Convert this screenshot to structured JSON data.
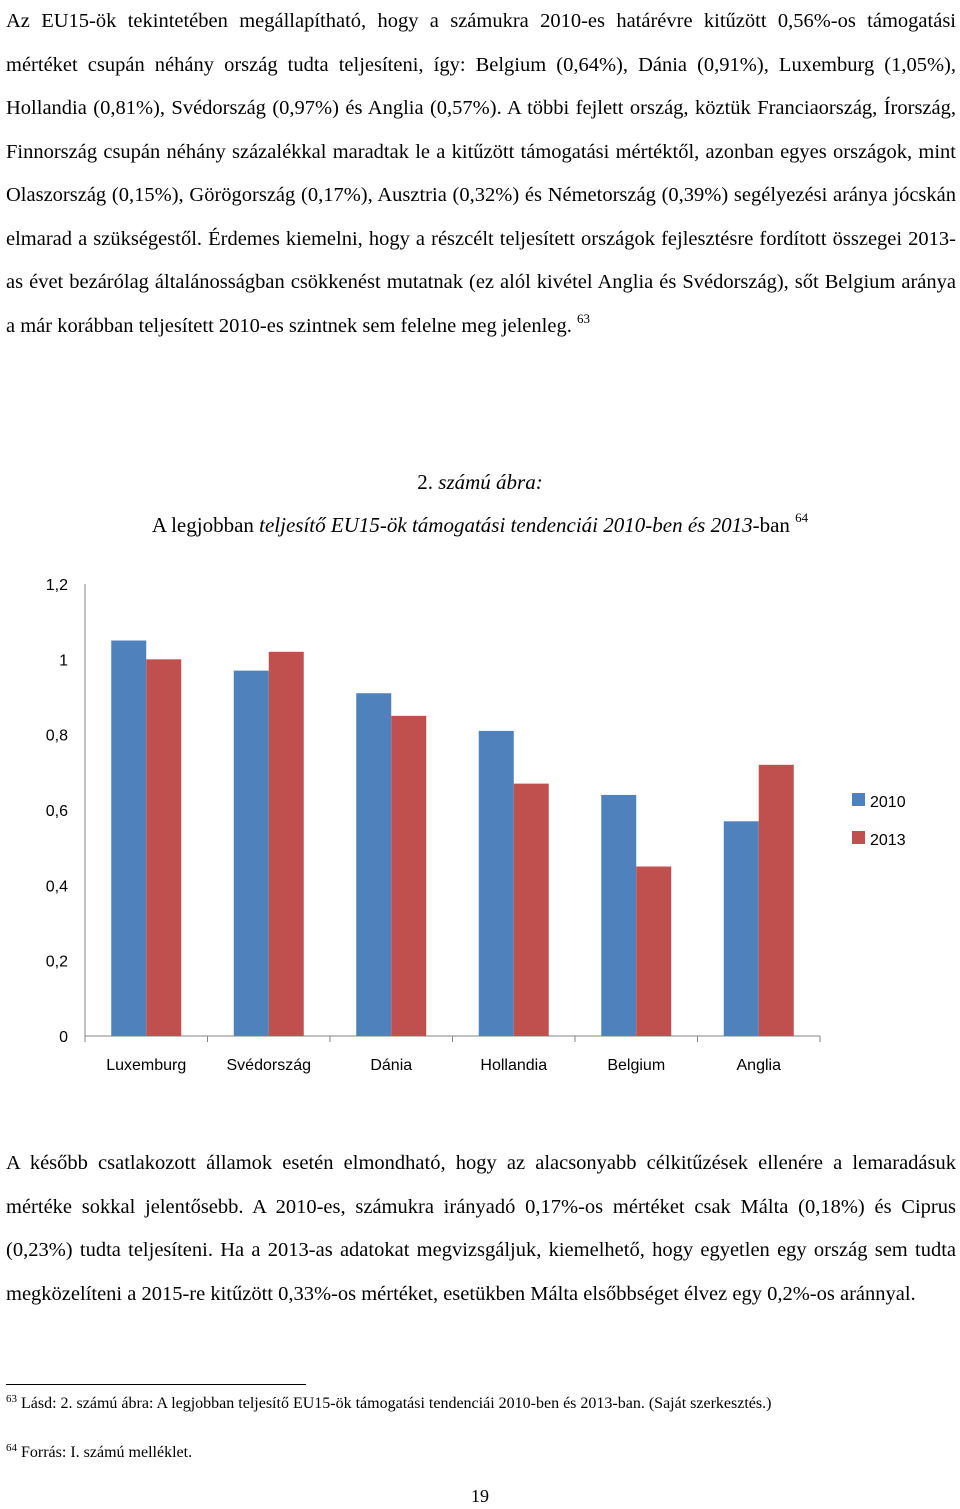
{
  "paragraph1": {
    "text": "Az EU15-ök tekintetében megállapítható, hogy a számukra 2010-es határévre kitűzött 0,56%-os támogatási mértéket csupán néhány ország tudta teljesíteni, így: Belgium (0,64%), Dánia (0,91%), Luxemburg (1,05%), Hollandia (0,81%), Svédország (0,97%) és Anglia (0,57%). A többi fejlett ország, köztük Franciaország, Írország, Finnország csupán néhány százalékkal maradtak le a kitűzött támogatási mértéktől, azonban egyes országok, mint Olaszország (0,15%), Görögország (0,17%), Ausztria (0,32%) és Németország (0,39%) segélyezési aránya jócskán elmarad a szükségestől. Érdemes kiemelni, hogy a részcélt teljesített országok fejlesztésre fordított összegei 2013-as évet bezárólag általánosságban csökkenést mutatnak (ez alól kivétel Anglia és Svédország), sőt Belgium aránya a már korábban teljesített 2010-es szintnek sem felelne meg jelenleg.",
    "footnote_ref": "63"
  },
  "figure": {
    "number": "2.",
    "number_label": "számú ábra:",
    "title_plain_1": "A legjobban ",
    "title_italic": "teljesítő EU15-ök támogatási tendenciái 2010-ben és 2013",
    "title_plain_2": "-ban",
    "footnote_ref": "64"
  },
  "chart_data": {
    "type": "bar",
    "categories": [
      "Luxemburg",
      "Svédország",
      "Dánia",
      "Hollandia",
      "Belgium",
      "Anglia"
    ],
    "series": [
      {
        "name": "2010",
        "values": [
          1.05,
          0.97,
          0.91,
          0.81,
          0.64,
          0.57
        ],
        "color": "#4f81bd"
      },
      {
        "name": "2013",
        "values": [
          1.0,
          1.02,
          0.85,
          0.67,
          0.45,
          0.72
        ],
        "color": "#c0504d"
      }
    ],
    "ylim": [
      0,
      1.2
    ],
    "yticks": [
      "0",
      "0,2",
      "0,4",
      "0,6",
      "0,8",
      "1",
      "1,2"
    ],
    "legend_position": "right",
    "grid": false
  },
  "paragraph2": {
    "text": "A később csatlakozott államok esetén elmondható, hogy az alacsonyabb célkitűzések ellenére a lemaradásuk mértéke sokkal jelentősebb. A 2010-es, számukra irányadó 0,17%-os mértéket csak Málta (0,18%) és Ciprus (0,23%) tudta teljesíteni. Ha a 2013-as adatokat megvizsgáljuk, kiemelhető, hogy egyetlen egy ország sem tudta megközelíteni a 2015-re kitűzött 0,33%-os mértéket, esetükben Málta elsőbbséget élvez egy 0,2%-os aránnyal."
  },
  "footnotes": [
    {
      "number": "63",
      "text": "Lásd: 2. számú ábra: A legjobban teljesítő EU15-ök támogatási tendenciái 2010-ben és 2013-ban. (Saját szerkesztés.)"
    },
    {
      "number": "64",
      "text": "Forrás: I. számú melléklet."
    }
  ],
  "page_number": "19"
}
